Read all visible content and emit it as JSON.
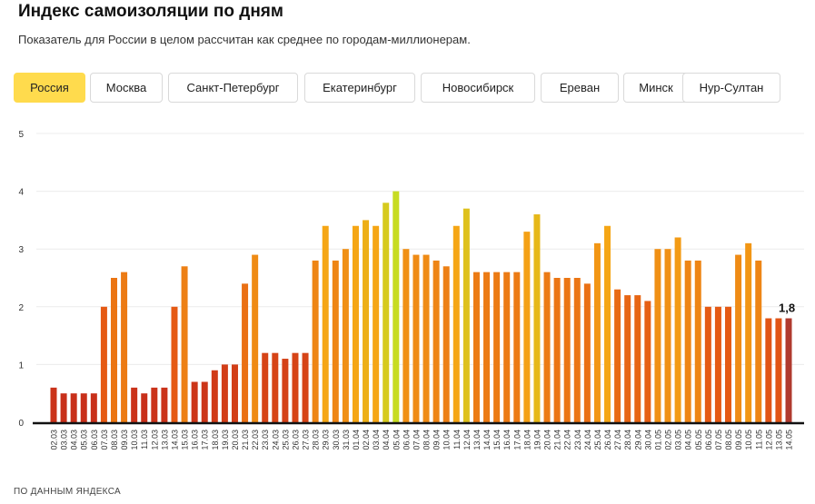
{
  "header": {
    "title": "Индекс самоизоляции по дням",
    "subtitle": "Показатель для России в целом рассчитан как среднее по городам-миллионерам."
  },
  "tabs": [
    {
      "label": "Россия",
      "active": true
    },
    {
      "label": "Москва",
      "active": false
    },
    {
      "label": "Санкт-Петербург",
      "active": false
    },
    {
      "label": "Екатеринбург",
      "active": false
    },
    {
      "label": "Новосибирск",
      "active": false
    },
    {
      "label": "Ереван",
      "active": false
    },
    {
      "label": "Минск",
      "active": false
    },
    {
      "label": "Нур-Султан",
      "active": false
    }
  ],
  "colors": {
    "active_tab": "#ffdb4d",
    "last_bar": "#b03a2e",
    "color_scale": [
      "#c8301a",
      "#e55a14",
      "#f5a615",
      "#c7dc22"
    ]
  },
  "chart_data": {
    "type": "bar",
    "ylim": [
      0,
      5
    ],
    "yticks": [
      "0",
      "1",
      "2",
      "3",
      "4",
      "5"
    ],
    "grid": true,
    "categories": [
      "02.03",
      "03.03",
      "04.03",
      "05.03",
      "06.03",
      "07.03",
      "08.03",
      "09.03",
      "10.03",
      "11.03",
      "12.03",
      "13.03",
      "14.03",
      "15.03",
      "16.03",
      "17.03",
      "18.03",
      "19.03",
      "20.03",
      "21.03",
      "22.03",
      "23.03",
      "24.03",
      "25.03",
      "26.03",
      "27.03",
      "28.03",
      "29.03",
      "30.03",
      "31.03",
      "01.04",
      "02.04",
      "03.04",
      "04.04",
      "05.04",
      "06.04",
      "07.04",
      "08.04",
      "09.04",
      "10.04",
      "11.04",
      "12.04",
      "13.04",
      "14.04",
      "15.04",
      "16.04",
      "17.04",
      "18.04",
      "19.04",
      "20.04",
      "21.04",
      "22.04",
      "23.04",
      "24.04",
      "25.04",
      "26.04",
      "27.04",
      "28.04",
      "29.04",
      "30.04",
      "01.05",
      "02.05",
      "03.05",
      "04.05",
      "05.05",
      "06.05",
      "07.05",
      "08.05",
      "09.05",
      "10.05",
      "11.05",
      "12.05",
      "13.05",
      "14.05"
    ],
    "values": [
      0.6,
      0.5,
      0.5,
      0.5,
      0.5,
      2.0,
      2.5,
      2.6,
      0.6,
      0.5,
      0.6,
      0.6,
      2.0,
      2.7,
      0.7,
      0.7,
      0.9,
      1.0,
      1.0,
      2.4,
      2.9,
      1.2,
      1.2,
      1.1,
      1.2,
      1.2,
      2.8,
      3.4,
      2.8,
      3.0,
      3.4,
      3.5,
      3.4,
      3.8,
      4.0,
      3.0,
      2.9,
      2.9,
      2.8,
      2.7,
      3.4,
      3.7,
      2.6,
      2.6,
      2.6,
      2.6,
      2.6,
      3.3,
      3.6,
      2.6,
      2.5,
      2.5,
      2.5,
      2.4,
      3.1,
      3.4,
      2.3,
      2.2,
      2.2,
      2.1,
      3.0,
      3.0,
      3.2,
      2.8,
      2.8,
      2.0,
      2.0,
      2.0,
      2.9,
      3.1,
      2.8,
      1.8,
      1.8,
      1.8
    ],
    "last_value_label": "1,8"
  },
  "footer": {
    "source": "ПО ДАННЫМ ЯНДЕКСА"
  }
}
